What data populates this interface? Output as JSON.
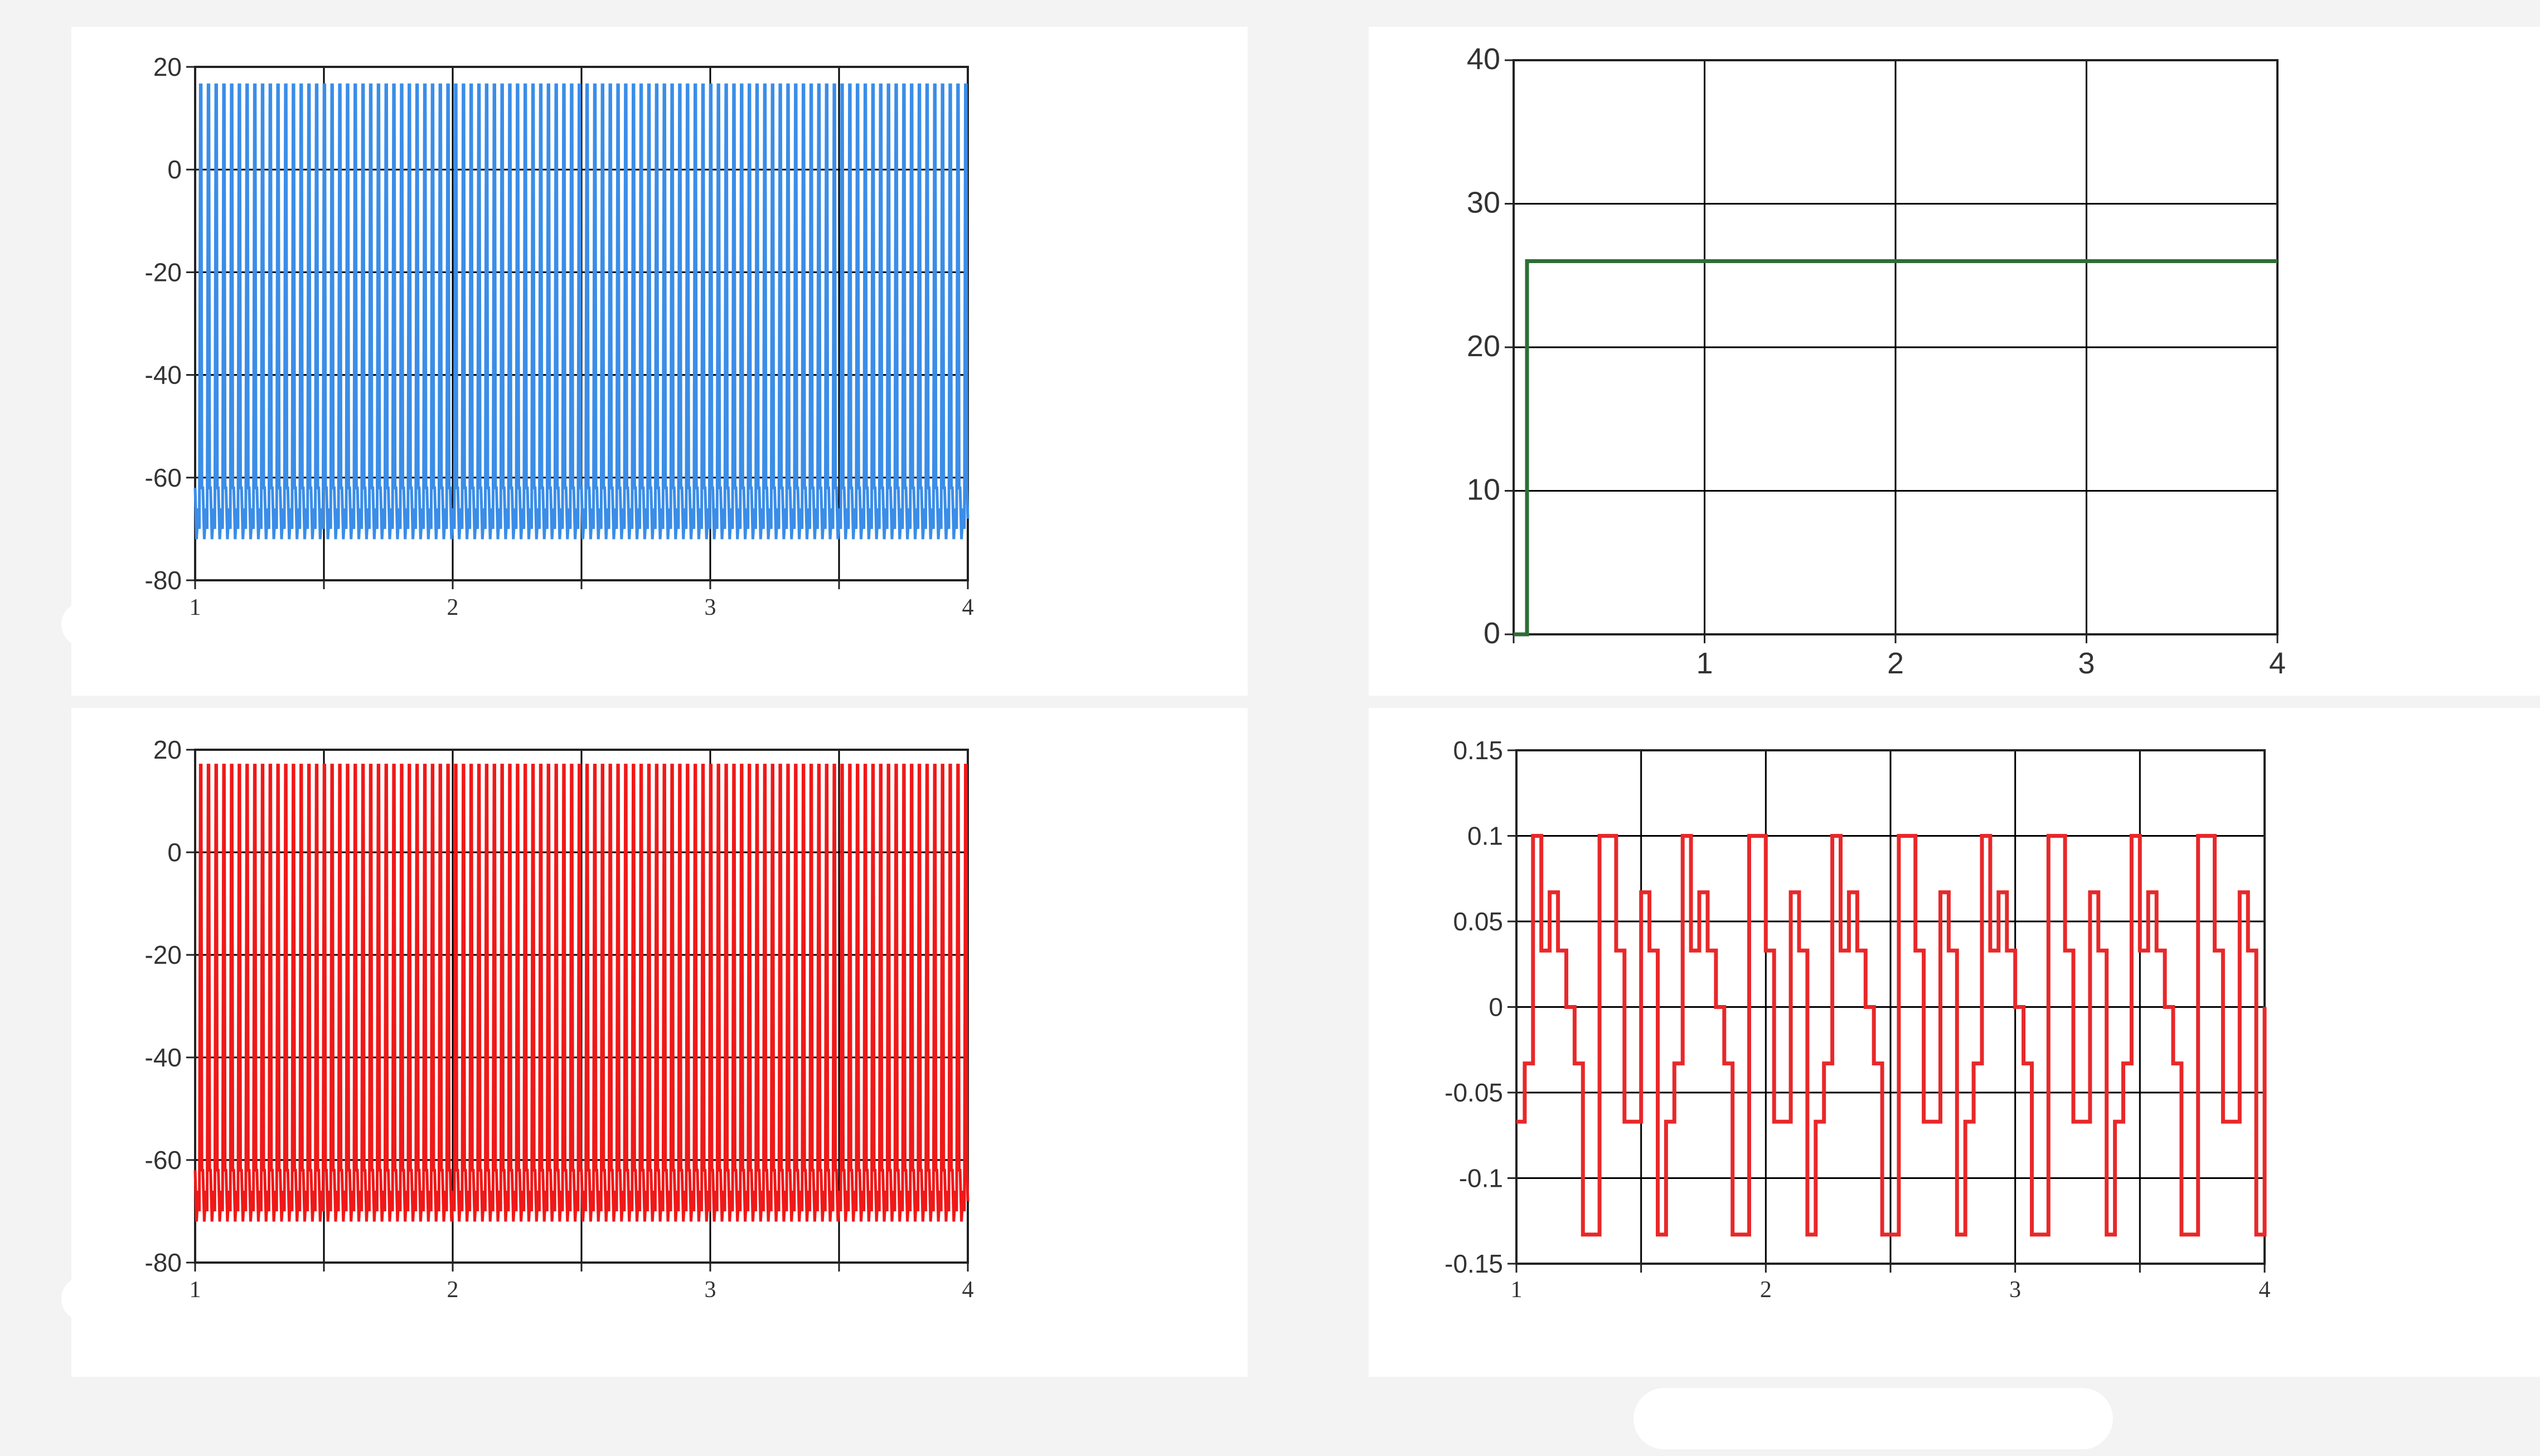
{
  "chart_data": [
    {
      "id": "top-left",
      "type": "line",
      "title": "",
      "xlabel": "",
      "ylabel": "",
      "xlim": [
        1,
        4
      ],
      "ylim": [
        -80,
        20
      ],
      "yticks": [
        "20",
        "0",
        "-20",
        "-40",
        "-60",
        "-80"
      ],
      "xticks": [
        "1",
        "2",
        "3",
        "4"
      ],
      "grid": true,
      "series": [
        {
          "color": "#3a8de8",
          "pattern": "spiking",
          "cycles": 100,
          "peak": 16.5,
          "trough": -72,
          "rest": -62
        }
      ]
    },
    {
      "id": "bottom-left",
      "type": "line",
      "title": "",
      "xlabel": "",
      "ylabel": "",
      "xlim": [
        1,
        4
      ],
      "ylim": [
        -80,
        20
      ],
      "yticks": [
        "20",
        "0",
        "-20",
        "-40",
        "-60",
        "-80"
      ],
      "xticks": [
        "1",
        "2",
        "3",
        "4"
      ],
      "grid": true,
      "series": [
        {
          "color": "#f01818",
          "pattern": "spiking",
          "cycles": 100,
          "peak": 17,
          "trough": -72,
          "rest": -62
        }
      ]
    },
    {
      "id": "top-right",
      "type": "line",
      "title": "",
      "xlabel": "",
      "ylabel": "",
      "xlim": [
        0,
        4
      ],
      "ylim": [
        0,
        40
      ],
      "yticks": [
        "40",
        "30",
        "20",
        "10",
        "0"
      ],
      "xticks": [
        "1",
        "2",
        "3",
        "4"
      ],
      "grid": true,
      "series": [
        {
          "color": "#2e6e36",
          "x": [
            0,
            0.07,
            0.07,
            4
          ],
          "y": [
            0,
            0,
            26,
            26
          ]
        }
      ]
    },
    {
      "id": "bottom-right",
      "type": "line",
      "title": "",
      "xlabel": "",
      "ylabel": "",
      "xlim": [
        1,
        4
      ],
      "ylim": [
        -0.15,
        0.15
      ],
      "yticks": [
        "0.15",
        "0.1",
        "0.05",
        "0",
        "-0.05",
        "-0.1",
        "-0.15"
      ],
      "xticks": [
        "1",
        "2",
        "3",
        "4"
      ],
      "grid": true,
      "series": [
        {
          "color": "#e8282a",
          "pattern": "step",
          "levels": [
            -0.067,
            -0.033,
            0.1,
            0.033,
            0.067,
            0.033,
            0,
            -0.033,
            -0.133,
            -0.133,
            0.1,
            0.1,
            0.033,
            -0.067,
            -0.067,
            0.067,
            0.033,
            -0.133
          ],
          "periods": 5
        }
      ]
    }
  ],
  "colors": {
    "grid": "#000000",
    "axis": "#222222",
    "blue_series": "#3a8de8",
    "red_series": "#f01818",
    "green_series": "#2e6e36"
  }
}
